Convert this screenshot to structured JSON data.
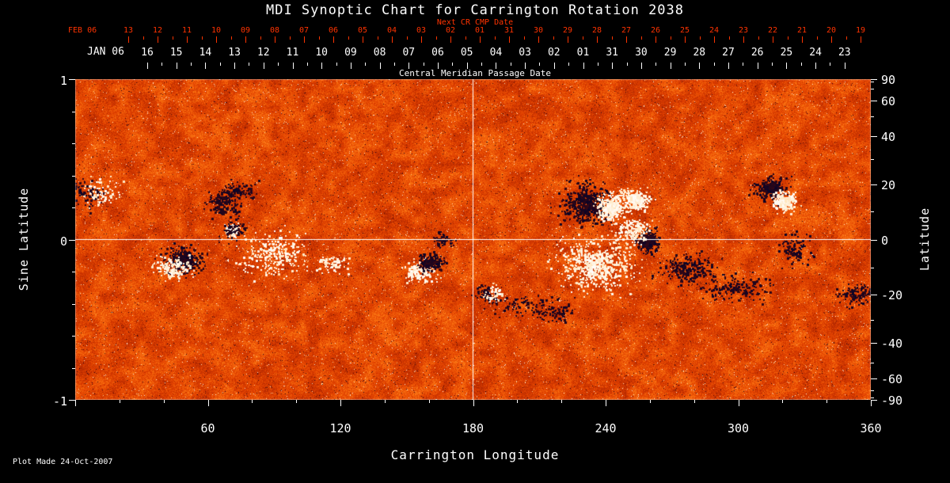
{
  "title": "MDI Synoptic Chart for Carrington Rotation 2038",
  "footer": "Plot Made 24-Oct-2007",
  "colors": {
    "background": "#000000",
    "text": "#ffffff",
    "accent_red": "#ff3300",
    "base_orange": "#e24000",
    "negative_dark": "#08042a",
    "positive_white": "#ffffff"
  },
  "top_axis": {
    "next_cr_label": "Next CR CMP Date",
    "next_cr_year_label": "FEB 06",
    "next_cr_days": [
      "13",
      "12",
      "11",
      "10",
      "09",
      "08",
      "07",
      "06",
      "05",
      "04",
      "03",
      "02",
      "01",
      "31",
      "30",
      "29",
      "28",
      "27",
      "26",
      "25",
      "24",
      "23",
      "22",
      "21",
      "20",
      "19"
    ],
    "cmp_year_label": "JAN 06",
    "cmp_days": [
      "16",
      "15",
      "14",
      "13",
      "12",
      "11",
      "10",
      "09",
      "08",
      "07",
      "06",
      "05",
      "04",
      "03",
      "02",
      "01",
      "31",
      "30",
      "29",
      "28",
      "27",
      "26",
      "25",
      "24",
      "23"
    ],
    "axis_title": "Central Meridian Passage Date"
  },
  "left_axis": {
    "title": "Sine Latitude",
    "ticks": [
      {
        "label": "1",
        "value": 1
      },
      {
        "label": "0",
        "value": 0
      },
      {
        "label": "-1",
        "value": -1
      }
    ],
    "minor_step": 0.2
  },
  "right_axis": {
    "title": "Latitude",
    "ticks": [
      {
        "label": "90",
        "value": 90
      },
      {
        "label": "60",
        "value": 60
      },
      {
        "label": "40",
        "value": 40
      },
      {
        "label": "20",
        "value": 20
      },
      {
        "label": "0",
        "value": 0
      },
      {
        "label": "-20",
        "value": -20
      },
      {
        "label": "-40",
        "value": -40
      },
      {
        "label": "-60",
        "value": -60
      },
      {
        "label": "-90",
        "value": -90
      }
    ],
    "minor_step": 10
  },
  "bottom_axis": {
    "title": "Carrington Longitude",
    "ticks": [
      60,
      120,
      180,
      240,
      300,
      360
    ],
    "minor_step": 20,
    "range": [
      0,
      360
    ]
  },
  "chart_data": {
    "type": "heatmap",
    "title": "MDI Synoptic Chart for Carrington Rotation 2038",
    "xlabel": "Carrington Longitude",
    "ylabel": "Sine Latitude",
    "ylabel_right": "Latitude",
    "x_range": [
      0,
      360
    ],
    "y_range": [
      -1,
      1
    ],
    "colormap": "red-temperature magnetogram: orange mottled quiet sun, white = positive polarity flux, dark navy/black = negative polarity flux",
    "reference_lines": {
      "longitude": 180,
      "sine_latitude": 0
    },
    "active_regions": [
      {
        "lon": 8,
        "sine_lat": 0.29,
        "polarity": "mixed",
        "n": 160,
        "spread_lon": 5,
        "spread_slat": 0.05,
        "core": false
      },
      {
        "lon": 49,
        "sine_lat": -0.13,
        "polarity": "neg",
        "n": 260,
        "spread_lon": 5,
        "spread_slat": 0.05,
        "core": true
      },
      {
        "lon": 44,
        "sine_lat": -0.17,
        "polarity": "pos",
        "n": 140,
        "spread_lon": 5,
        "spread_slat": 0.04,
        "core": false
      },
      {
        "lon": 67,
        "sine_lat": 0.23,
        "polarity": "neg",
        "n": 150,
        "spread_lon": 4,
        "spread_slat": 0.04,
        "core": false
      },
      {
        "lon": 73,
        "sine_lat": 0.31,
        "polarity": "neg",
        "n": 100,
        "spread_lon": 5,
        "spread_slat": 0.03,
        "core": false
      },
      {
        "lon": 71,
        "sine_lat": 0.06,
        "polarity": "pos",
        "n": 220,
        "spread_lon": 1.6,
        "spread_slat": 0.02,
        "core": true
      },
      {
        "lon": 71,
        "sine_lat": 0.06,
        "polarity": "neg",
        "n": 70,
        "spread_lon": 3.5,
        "spread_slat": 0.035,
        "core": false
      },
      {
        "lon": 90,
        "sine_lat": -0.09,
        "polarity": "pos",
        "n": 260,
        "spread_lon": 8,
        "spread_slat": 0.07,
        "core": false
      },
      {
        "lon": 116,
        "sine_lat": -0.15,
        "polarity": "pos",
        "n": 70,
        "spread_lon": 4,
        "spread_slat": 0.03,
        "core": false
      },
      {
        "lon": 156,
        "sine_lat": -0.2,
        "polarity": "pos",
        "n": 160,
        "spread_lon": 4,
        "spread_slat": 0.035,
        "core": false
      },
      {
        "lon": 161,
        "sine_lat": -0.14,
        "polarity": "neg",
        "n": 130,
        "spread_lon": 3,
        "spread_slat": 0.03,
        "core": true
      },
      {
        "lon": 166,
        "sine_lat": 0.0,
        "polarity": "neg",
        "n": 60,
        "spread_lon": 2.5,
        "spread_slat": 0.025,
        "core": false
      },
      {
        "lon": 188,
        "sine_lat": -0.34,
        "polarity": "mixed",
        "n": 110,
        "spread_lon": 3,
        "spread_slat": 0.03,
        "core": false
      },
      {
        "lon": 204,
        "sine_lat": -0.41,
        "polarity": "neg",
        "n": 90,
        "spread_lon": 8,
        "spread_slat": 0.04,
        "core": false
      },
      {
        "lon": 217,
        "sine_lat": -0.46,
        "polarity": "neg",
        "n": 60,
        "spread_lon": 5,
        "spread_slat": 0.03,
        "core": false
      },
      {
        "lon": 231,
        "sine_lat": 0.22,
        "polarity": "neg",
        "n": 420,
        "spread_lon": 6,
        "spread_slat": 0.07,
        "core": true
      },
      {
        "lon": 242,
        "sine_lat": 0.2,
        "polarity": "pos",
        "n": 260,
        "spread_lon": 4,
        "spread_slat": 0.05,
        "core": true
      },
      {
        "lon": 253,
        "sine_lat": 0.25,
        "polarity": "pos",
        "n": 200,
        "spread_lon": 4,
        "spread_slat": 0.04,
        "core": true
      },
      {
        "lon": 259,
        "sine_lat": -0.01,
        "polarity": "neg",
        "n": 260,
        "spread_lon": 3,
        "spread_slat": 0.04,
        "core": true
      },
      {
        "lon": 252,
        "sine_lat": 0.06,
        "polarity": "pos",
        "n": 150,
        "spread_lon": 4,
        "spread_slat": 0.04,
        "core": false
      },
      {
        "lon": 236,
        "sine_lat": -0.16,
        "polarity": "pos",
        "n": 520,
        "spread_lon": 10,
        "spread_slat": 0.09,
        "core": true
      },
      {
        "lon": 278,
        "sine_lat": -0.18,
        "polarity": "neg",
        "n": 220,
        "spread_lon": 7,
        "spread_slat": 0.05,
        "core": false
      },
      {
        "lon": 299,
        "sine_lat": -0.3,
        "polarity": "neg",
        "n": 160,
        "spread_lon": 9,
        "spread_slat": 0.05,
        "core": false
      },
      {
        "lon": 315,
        "sine_lat": 0.32,
        "polarity": "neg",
        "n": 200,
        "spread_lon": 4,
        "spread_slat": 0.04,
        "core": true
      },
      {
        "lon": 321,
        "sine_lat": 0.24,
        "polarity": "pos",
        "n": 160,
        "spread_lon": 3,
        "spread_slat": 0.035,
        "core": true
      },
      {
        "lon": 326,
        "sine_lat": -0.06,
        "polarity": "neg",
        "n": 100,
        "spread_lon": 4,
        "spread_slat": 0.05,
        "core": false
      },
      {
        "lon": 353,
        "sine_lat": -0.34,
        "polarity": "neg",
        "n": 110,
        "spread_lon": 4,
        "spread_slat": 0.04,
        "core": false
      }
    ]
  }
}
